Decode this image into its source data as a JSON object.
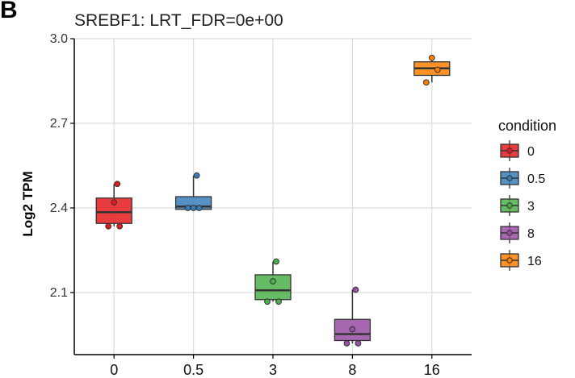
{
  "chart_data": {
    "type": "box",
    "panel_label": "B",
    "title": "SREBF1: LRT_FDR=0e+00",
    "ylabel": "Log2 TPM",
    "xlabel": "",
    "ylim": [
      1.88,
      3.0
    ],
    "yticks": [
      2.1,
      2.4,
      2.7,
      3.0
    ],
    "ytick_labels": [
      "2.1",
      "2.4",
      "2.7",
      "3.0"
    ],
    "categories": [
      "0",
      "0.5",
      "3",
      "8",
      "16"
    ],
    "grid": true,
    "legend": {
      "title": "condition",
      "position": "right"
    },
    "series": [
      {
        "name": "0",
        "color": "#e41a1c",
        "box": {
          "whisker_low": 2.335,
          "q1": 2.345,
          "median": 2.385,
          "q3": 2.435,
          "whisker_high": 2.485
        },
        "points": [
          2.335,
          2.335,
          2.42,
          2.485
        ]
      },
      {
        "name": "0.5",
        "color": "#377eb8",
        "box": {
          "whisker_low": 2.395,
          "q1": 2.395,
          "median": 2.405,
          "q3": 2.44,
          "whisker_high": 2.515
        },
        "points": [
          2.4,
          2.4,
          2.4,
          2.515
        ]
      },
      {
        "name": "3",
        "color": "#4daf4a",
        "box": {
          "whisker_low": 2.068,
          "q1": 2.075,
          "median": 2.108,
          "q3": 2.163,
          "whisker_high": 2.21
        },
        "points": [
          2.068,
          2.068,
          2.14,
          2.21
        ]
      },
      {
        "name": "8",
        "color": "#984ea3",
        "box": {
          "whisker_low": 1.92,
          "q1": 1.93,
          "median": 1.953,
          "q3": 2.005,
          "whisker_high": 2.11
        },
        "points": [
          1.92,
          1.92,
          1.97,
          2.11
        ]
      },
      {
        "name": "16",
        "color": "#ff7f00",
        "box": {
          "whisker_low": 2.845,
          "q1": 2.87,
          "median": 2.895,
          "q3": 2.918,
          "whisker_high": 2.932
        },
        "points": [
          2.845,
          2.89,
          2.932
        ]
      }
    ]
  }
}
